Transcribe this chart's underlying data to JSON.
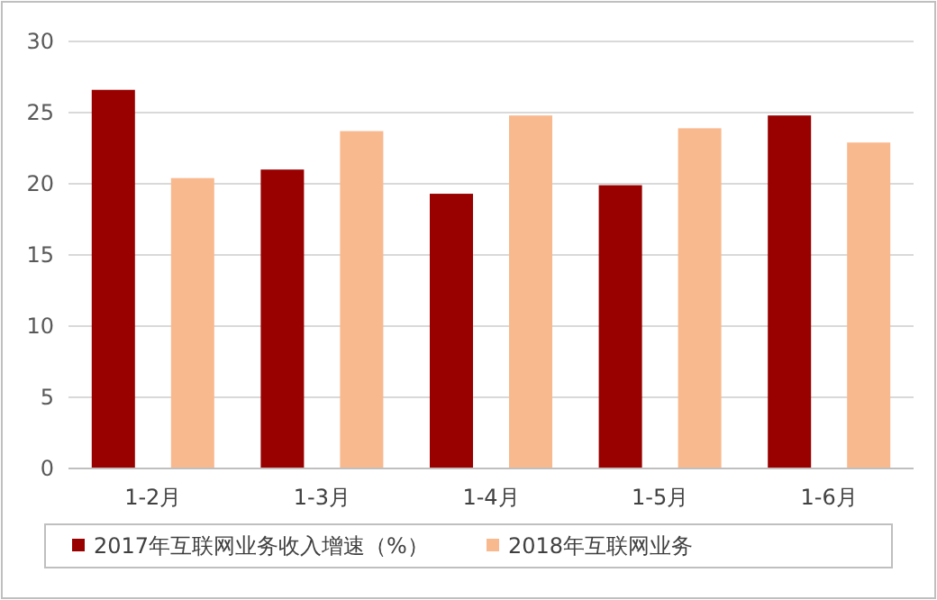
{
  "chart_data": {
    "type": "bar",
    "categories": [
      "1-2月",
      "1-3月",
      "1-4月",
      "1-5月",
      "1-6月"
    ],
    "series": [
      {
        "name": "2017年互联网业务收入增速（%）",
        "color": "#990000",
        "values": [
          26.6,
          21.0,
          19.3,
          19.9,
          24.8
        ]
      },
      {
        "name": "2018年互联网业务",
        "color": "#f9b98f",
        "values": [
          20.4,
          23.7,
          24.8,
          23.9,
          22.9
        ]
      }
    ],
    "ylim": [
      0,
      30
    ],
    "yticks": [
      0,
      5,
      10,
      15,
      20,
      25,
      30
    ],
    "grid": "y",
    "legend": "bottom"
  }
}
